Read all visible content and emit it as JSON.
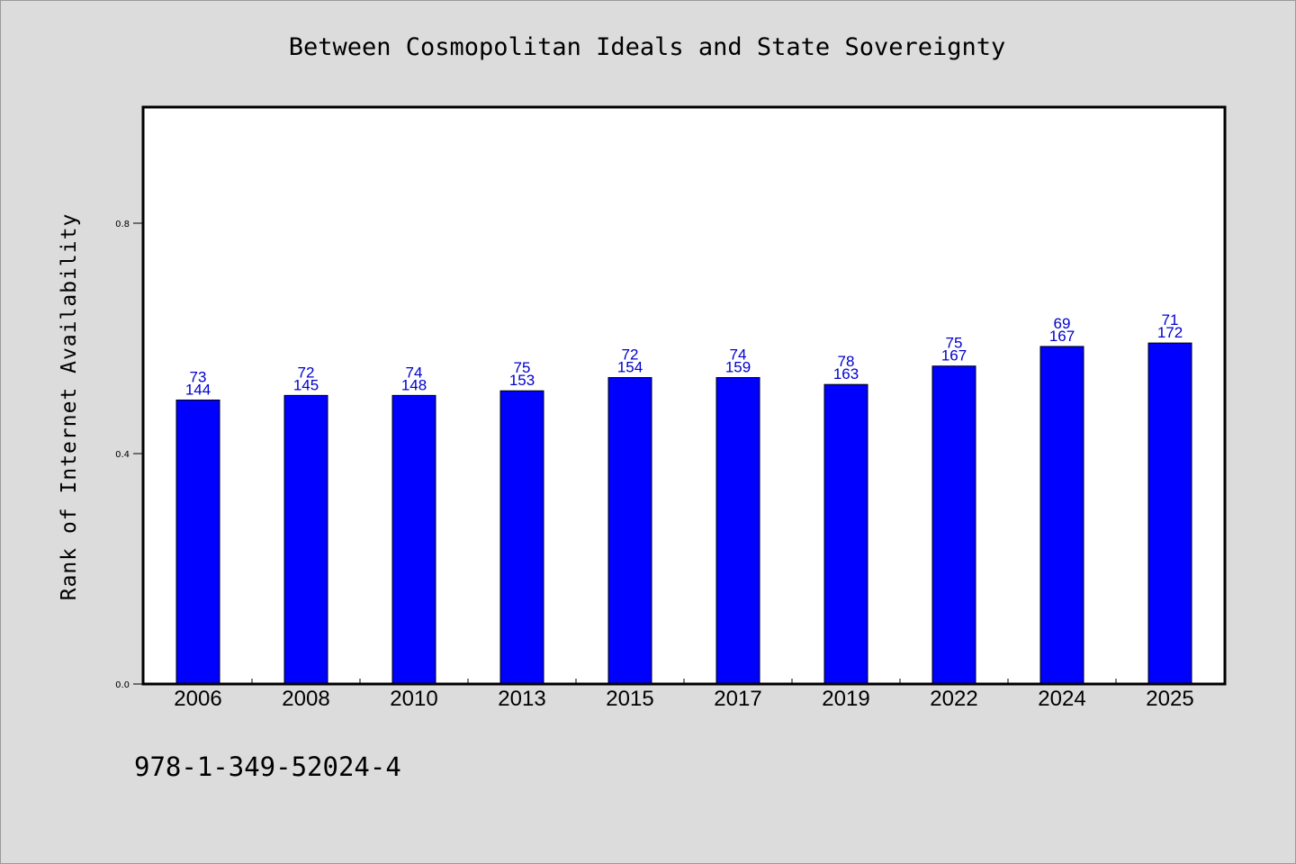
{
  "chart_data": {
    "type": "bar",
    "title": "Between Cosmopolitan Ideals and State Sovereignty",
    "xlabel": "",
    "ylabel": "Rank of Internet Availability",
    "categories": [
      "2006",
      "2008",
      "2010",
      "2013",
      "2015",
      "2017",
      "2019",
      "2022",
      "2024",
      "2025"
    ],
    "values": [
      0.493,
      0.501,
      0.501,
      0.509,
      0.532,
      0.532,
      0.52,
      0.552,
      0.586,
      0.592
    ],
    "label_top": [
      "73",
      "72",
      "74",
      "75",
      "72",
      "74",
      "78",
      "75",
      "69",
      "71"
    ],
    "label_bottom": [
      "144",
      "145",
      "148",
      "153",
      "154",
      "159",
      "163",
      "167",
      "167",
      "172"
    ],
    "ylim": [
      0,
      1.0
    ],
    "yticks": [
      0.0,
      0.4,
      0.8
    ],
    "ytick_labels": [
      "0.0",
      "0.4",
      "0.8"
    ],
    "grid": false,
    "legend": "none",
    "bar_color": "#0000ff",
    "label_color": "#0000cc"
  },
  "footer": "978-1-349-52024-4"
}
